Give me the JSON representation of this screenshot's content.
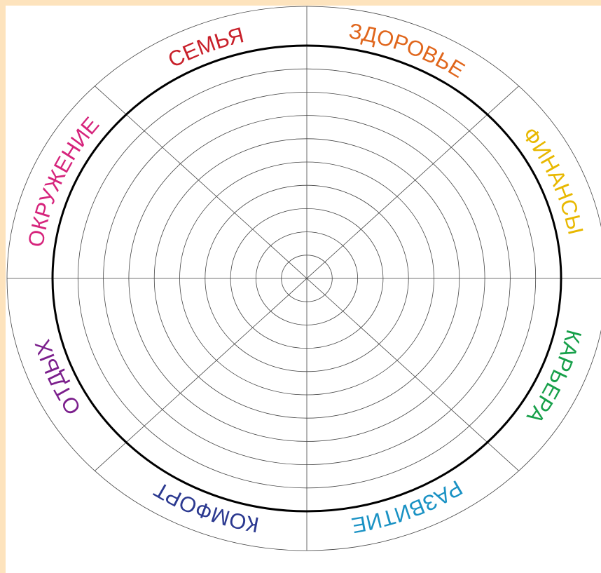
{
  "segments": [
    {
      "label": "СЕМЬЯ",
      "color": "#c8202a"
    },
    {
      "label": "ЗДОРОВЬЕ",
      "color": "#e0661c"
    },
    {
      "label": "ФИНАНСЫ",
      "color": "#e8b800"
    },
    {
      "label": "КАРЬЕРА",
      "color": "#17a04a"
    },
    {
      "label": "РАЗВИТИЕ",
      "color": "#1a92c4"
    },
    {
      "label": "КОМФОРТ",
      "color": "#2b3990"
    },
    {
      "label": "ОТДЫХ",
      "color": "#7b1f8c"
    },
    {
      "label": "ОКРУЖЕНИЕ",
      "color": "#d6247c"
    }
  ]
}
